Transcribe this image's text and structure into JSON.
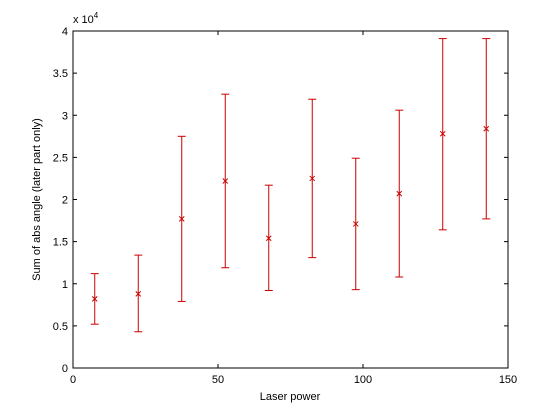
{
  "chart_data": {
    "type": "scatter",
    "title": "",
    "xlabel": "Laser power",
    "ylabel": "Sum of abs angle (later part only)",
    "y_exponent_label": "x 10",
    "y_exponent_power": "4",
    "xlim": [
      0,
      150
    ],
    "ylim": [
      0,
      4
    ],
    "x_ticks": [
      0,
      50,
      100,
      150
    ],
    "x_tick_labels": [
      "0",
      "50",
      "100",
      "150"
    ],
    "y_ticks": [
      0,
      0.5,
      1,
      1.5,
      2,
      2.5,
      3,
      3.5,
      4
    ],
    "y_tick_labels": [
      "0",
      "0.5",
      "1",
      "1.5",
      "2",
      "2.5",
      "3",
      "3.5",
      "4"
    ],
    "grid": false,
    "legend": "none",
    "series_color": "#cc0000",
    "series": [
      {
        "x": [
          7.5,
          22.5,
          37.5,
          52.5,
          67.5,
          82.5,
          97.5,
          112.5,
          127.5,
          142.5
        ],
        "y": [
          0.82,
          0.88,
          1.77,
          2.22,
          1.54,
          2.25,
          1.71,
          2.07,
          2.78,
          2.84
        ],
        "ylow": [
          0.52,
          0.43,
          0.79,
          1.19,
          0.92,
          1.31,
          0.93,
          1.08,
          1.64,
          1.77
        ],
        "yhigh": [
          1.12,
          1.34,
          2.75,
          3.25,
          2.17,
          3.19,
          2.49,
          3.06,
          3.91,
          3.91
        ]
      }
    ]
  }
}
